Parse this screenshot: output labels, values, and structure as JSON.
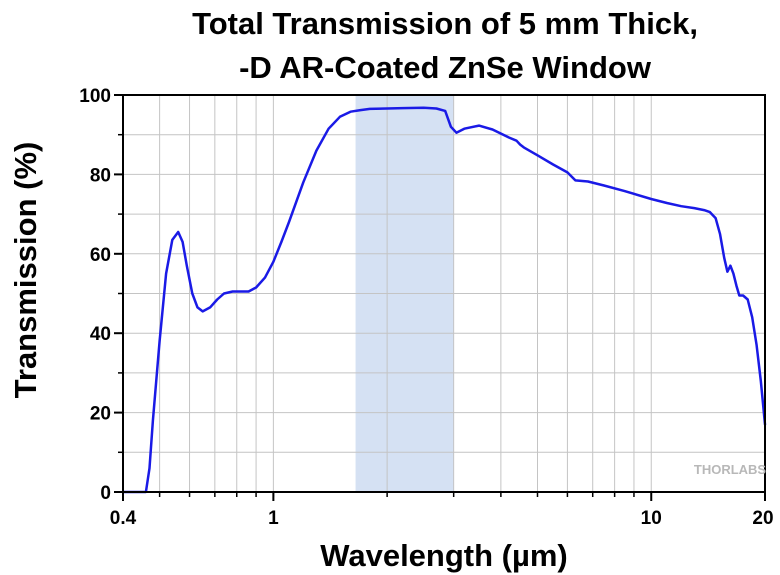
{
  "chart_data": {
    "type": "line",
    "title_line1": "Total Transmission of 5 mm Thick,",
    "title_line2": "-D AR-Coated ZnSe Window",
    "xlabel": "Wavelength (µm)",
    "ylabel": "Transmission (%)",
    "x_scale": "log",
    "xlim": [
      0.4,
      20
    ],
    "ylim": [
      0,
      100
    ],
    "x_ticks": [
      {
        "value": 0.4,
        "label": "0.4"
      },
      {
        "value": 1,
        "label": "1"
      },
      {
        "value": 10,
        "label": "10"
      },
      {
        "value": 20,
        "label": "20"
      }
    ],
    "y_ticks": [
      {
        "value": 0,
        "label": "0"
      },
      {
        "value": 20,
        "label": "20"
      },
      {
        "value": 40,
        "label": "40"
      },
      {
        "value": 60,
        "label": "60"
      },
      {
        "value": 80,
        "label": "80"
      },
      {
        "value": 100,
        "label": "100"
      }
    ],
    "grid": true,
    "highlight_band": {
      "x_range": [
        1.65,
        3.0
      ],
      "color": "#d5e1f3"
    },
    "line_color": "#1a1ae6",
    "watermark": "THORLABS",
    "series": [
      {
        "x": [
          0.4,
          0.445,
          0.46,
          0.47,
          0.48,
          0.5,
          0.52,
          0.54,
          0.56,
          0.575,
          0.59,
          0.61,
          0.63,
          0.65,
          0.68,
          0.71,
          0.74,
          0.78,
          0.82,
          0.86,
          0.9,
          0.95,
          1.0,
          1.05,
          1.1,
          1.2,
          1.3,
          1.4,
          1.5,
          1.6,
          1.7,
          1.8,
          2.0,
          2.2,
          2.5,
          2.7,
          2.85,
          2.95,
          3.05,
          3.2,
          3.5,
          3.8,
          4.2,
          4.4,
          4.5,
          4.6,
          5.0,
          5.5,
          6.0,
          6.3,
          6.8,
          7.5,
          8.5,
          10,
          11,
          12,
          13,
          13.8,
          14.3,
          14.8,
          15.2,
          15.6,
          15.9,
          16.2,
          16.5,
          16.8,
          17.1,
          17.5,
          18,
          18.5,
          19,
          19.5,
          20
        ],
        "y": [
          0,
          0,
          0,
          6,
          18,
          38,
          55,
          63.5,
          65.5,
          63,
          57,
          50,
          46.5,
          45.5,
          46.5,
          48.5,
          50,
          50.5,
          50.5,
          50.5,
          51.5,
          54,
          58,
          63,
          68,
          78,
          86,
          91.5,
          94.5,
          95.8,
          96.2,
          96.5,
          96.6,
          96.7,
          96.8,
          96.6,
          96,
          92,
          90.5,
          91.5,
          92.3,
          91.3,
          89.3,
          88.5,
          87.5,
          86.8,
          84.8,
          82.5,
          80.5,
          78.5,
          78.2,
          77.2,
          75.8,
          73.8,
          72.8,
          72,
          71.5,
          71,
          70.5,
          69,
          65,
          59,
          55.5,
          57,
          55,
          52,
          49.5,
          49.5,
          48.5,
          44,
          37,
          28,
          17
        ]
      }
    ]
  }
}
